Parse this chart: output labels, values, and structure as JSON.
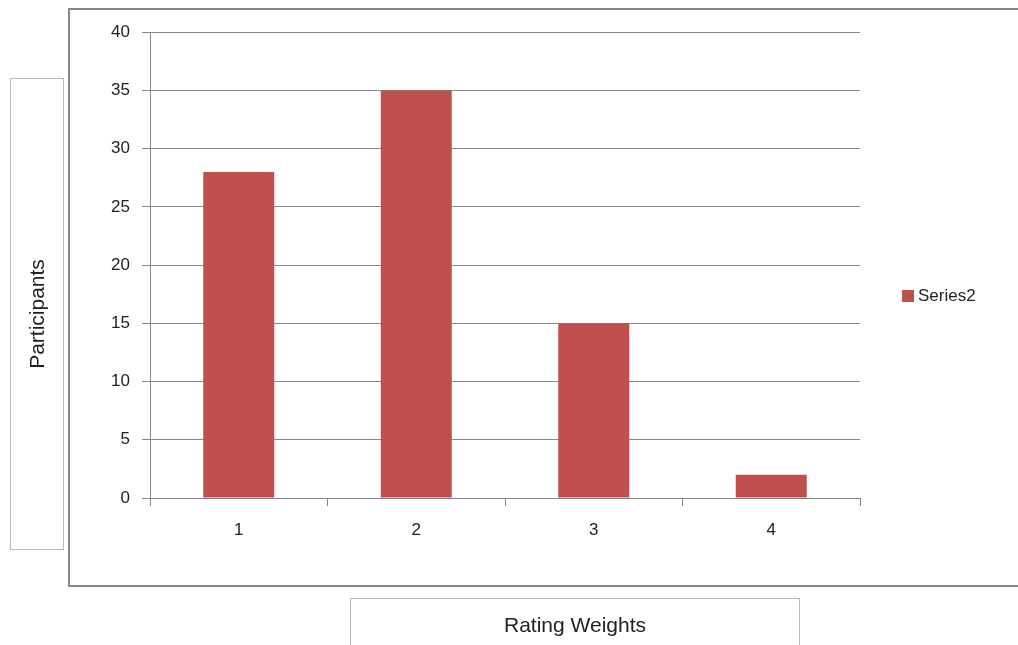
{
  "chart_data": {
    "type": "bar",
    "xlabel": "Rating Weights",
    "ylabel": "Participants",
    "categories": [
      "1",
      "2",
      "3",
      "4"
    ],
    "series": [
      {
        "name": "Series2",
        "color": "#c0504d",
        "values": [
          28,
          35,
          15,
          2
        ]
      }
    ],
    "ylim": [
      0,
      40
    ],
    "yticks": [
      0,
      5,
      10,
      15,
      20,
      25,
      30,
      35,
      40
    ],
    "grid": "y",
    "legend": "right"
  }
}
